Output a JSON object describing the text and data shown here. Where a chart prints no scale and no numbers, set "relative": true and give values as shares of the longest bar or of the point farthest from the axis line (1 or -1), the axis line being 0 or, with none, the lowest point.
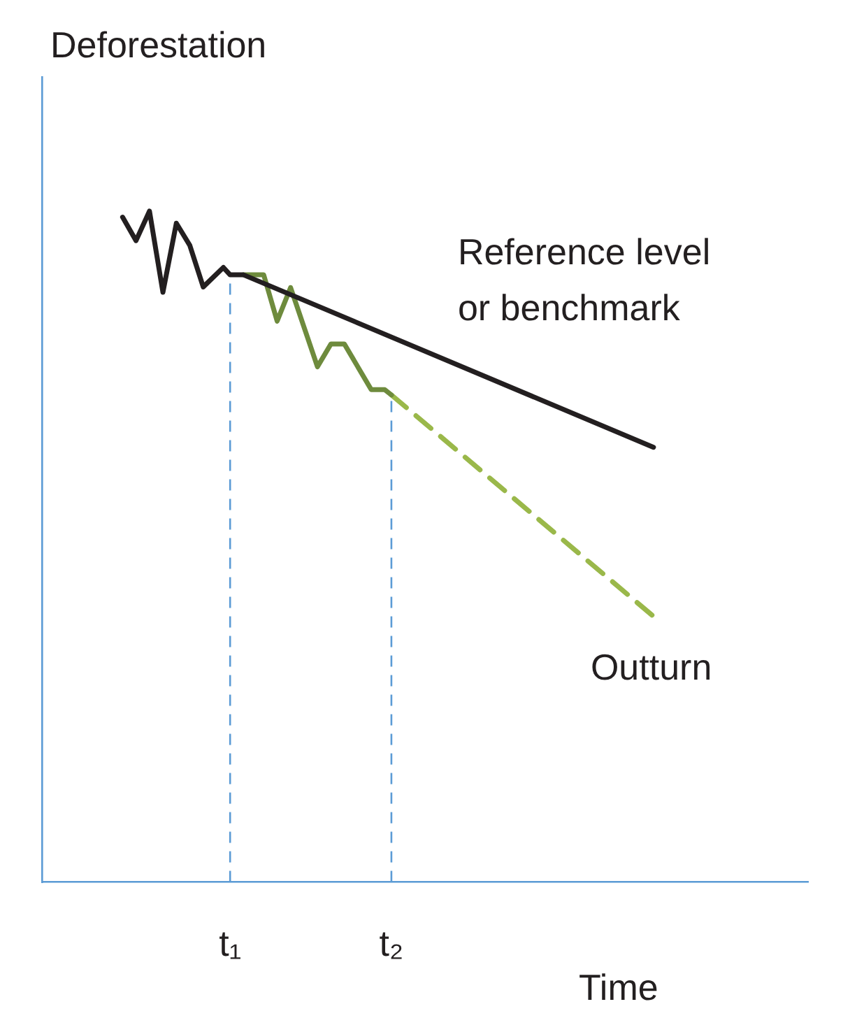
{
  "chart_data": {
    "type": "line",
    "relative": true,
    "xlabel": "Time",
    "ylabel": "Deforestation",
    "categories": [
      null,
      null,
      null,
      null,
      null,
      null,
      null,
      null,
      null,
      null,
      null,
      null,
      null,
      null,
      null,
      null,
      null,
      null,
      null,
      null,
      null,
      null,
      null,
      null,
      null,
      null,
      null,
      null,
      "t₁",
      null,
      null,
      null,
      null,
      null,
      null,
      null,
      null,
      null,
      null,
      null,
      null,
      null,
      null,
      null,
      null,
      null,
      null,
      null,
      null,
      null,
      null,
      null,
      "t₂",
      null,
      null,
      null,
      null,
      null,
      null,
      null,
      null,
      null,
      null,
      null,
      null,
      null,
      null,
      null,
      null,
      null,
      null,
      null,
      null,
      null,
      null,
      null,
      null,
      null,
      null,
      null,
      null,
      null,
      null,
      null,
      null,
      null,
      null,
      null,
      null,
      null,
      null,
      null,
      null,
      null,
      null,
      null,
      null,
      null,
      null,
      null,
      null,
      null,
      null,
      null,
      null,
      null,
      null,
      null,
      null,
      null,
      null,
      null,
      null,
      null,
      null
    ],
    "grid": false,
    "legend": false,
    "marker": "none",
    "line_style": "solid",
    "ref_lines": [
      {
        "axis": "x",
        "value": "t₁",
        "color": "#5b9bd5",
        "line_style": "dashed"
      },
      {
        "axis": "x",
        "value": "t₂",
        "color": "#5b9bd5",
        "line_style": "dashed"
      }
    ],
    "series": [
      {
        "name": "Reference level or benchmark",
        "color": "#231f20",
        "values": [
          null,
          null,
          null,
          null,
          null,
          null,
          null,
          null,
          null,
          null,
          null,
          null,
          0.991,
          null,
          0.956,
          null,
          1,
          null,
          0.879,
          null,
          0.982,
          null,
          0.949,
          null,
          0.887,
          null,
          null,
          0.916,
          0.905,
          null,
          0.905,
          null,
          null,
          null,
          null,
          null,
          null,
          null,
          null,
          null,
          null,
          null,
          null,
          null,
          null,
          null,
          null,
          null,
          null,
          null,
          null,
          null,
          null,
          null,
          null,
          null,
          null,
          null,
          null,
          null,
          null,
          null,
          null,
          null,
          null,
          null,
          null,
          null,
          null,
          null,
          null,
          null,
          null,
          null,
          null,
          null,
          null,
          null,
          null,
          null,
          null,
          null,
          null,
          null,
          null,
          null,
          null,
          null,
          null,
          null,
          null,
          0.648,
          null,
          null,
          null,
          null,
          null,
          null,
          null,
          null,
          null,
          null,
          null,
          null,
          null,
          null,
          null,
          null,
          null,
          null,
          null,
          null,
          null,
          null,
          null
        ]
      },
      {
        "color": "#6e8b3d",
        "values": [
          null,
          null,
          null,
          null,
          null,
          null,
          null,
          null,
          null,
          null,
          null,
          null,
          null,
          null,
          null,
          null,
          null,
          null,
          null,
          null,
          null,
          null,
          null,
          null,
          null,
          null,
          null,
          null,
          null,
          null,
          0.905,
          null,
          null,
          0.905,
          null,
          0.836,
          null,
          0.886,
          null,
          null,
          null,
          0.768,
          null,
          0.802,
          null,
          0.802,
          null,
          null,
          null,
          0.734,
          null,
          0.734,
          0.726,
          null,
          null,
          null,
          null,
          null,
          null,
          null,
          null,
          null,
          null,
          null,
          null,
          null,
          null,
          null,
          null,
          null,
          null,
          null,
          null,
          null,
          null,
          null,
          null,
          null,
          null,
          null,
          null,
          null,
          null,
          null,
          null,
          null,
          null,
          null,
          null,
          null,
          null,
          null,
          null,
          null,
          null,
          null,
          null,
          null,
          null,
          null,
          null,
          null,
          null,
          null,
          null,
          null,
          null,
          null,
          null,
          null,
          null,
          null,
          null,
          null,
          null
        ]
      },
      {
        "name": "Outturn",
        "color": "#9ab84a",
        "line_style": "dashed",
        "values": [
          null,
          null,
          null,
          null,
          null,
          null,
          null,
          null,
          null,
          null,
          null,
          null,
          null,
          null,
          null,
          null,
          null,
          null,
          null,
          null,
          null,
          null,
          null,
          null,
          null,
          null,
          null,
          null,
          null,
          null,
          null,
          null,
          null,
          null,
          null,
          null,
          null,
          null,
          null,
          null,
          null,
          null,
          null,
          null,
          null,
          null,
          null,
          null,
          null,
          null,
          null,
          null,
          0.726,
          null,
          null,
          null,
          null,
          null,
          null,
          null,
          null,
          null,
          null,
          null,
          null,
          null,
          null,
          null,
          null,
          null,
          null,
          null,
          null,
          null,
          null,
          null,
          null,
          null,
          null,
          null,
          null,
          null,
          null,
          null,
          null,
          null,
          null,
          null,
          null,
          null,
          null,
          0.396,
          null,
          null,
          null,
          null,
          null,
          null,
          null,
          null,
          null,
          null,
          null,
          null,
          null,
          null,
          null,
          null,
          null,
          null,
          null,
          null,
          null,
          null,
          null
        ]
      }
    ]
  }
}
